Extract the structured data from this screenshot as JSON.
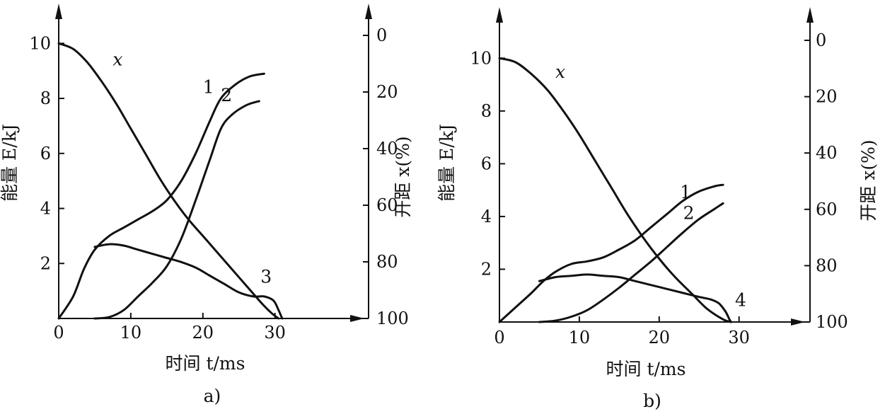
{
  "chart_data": [
    {
      "id": "a",
      "type": "line",
      "caption": "a)",
      "xlabel": "时间 t/ms",
      "ylabel": "能量 E/kJ",
      "y2label": "开距 x(%)",
      "xlim": [
        0,
        37
      ],
      "ylim": [
        0,
        10.6
      ],
      "y2lim": [
        0,
        100
      ],
      "y2_inverted": true,
      "x_ticks": [
        0,
        10,
        20,
        30
      ],
      "y_ticks": [
        2,
        4,
        6,
        8,
        10
      ],
      "y2_ticks": [
        0,
        20,
        40,
        60,
        80,
        100
      ],
      "series": [
        {
          "name": "x",
          "label_at": [
            7.5,
            9.2
          ],
          "points": [
            [
              0,
              10
            ],
            [
              2,
              9.8
            ],
            [
              4,
              9.3
            ],
            [
              6,
              8.6
            ],
            [
              8,
              7.8
            ],
            [
              10,
              6.9
            ],
            [
              12,
              6
            ],
            [
              14,
              5.1
            ],
            [
              16,
              4.3
            ],
            [
              18,
              3.6
            ],
            [
              20,
              3
            ],
            [
              22,
              2.4
            ],
            [
              24,
              1.8
            ],
            [
              26,
              1.2
            ],
            [
              28,
              0.6
            ],
            [
              29.5,
              0.2
            ],
            [
              30.5,
              0
            ]
          ]
        },
        {
          "name": "1",
          "label_at": [
            20,
            8.2
          ],
          "points": [
            [
              0,
              0
            ],
            [
              2,
              0.8
            ],
            [
              3.5,
              1.8
            ],
            [
              5,
              2.5
            ],
            [
              7,
              3
            ],
            [
              9,
              3.3
            ],
            [
              11,
              3.6
            ],
            [
              13,
              3.9
            ],
            [
              15,
              4.3
            ],
            [
              17,
              5
            ],
            [
              19,
              6
            ],
            [
              21,
              7.2
            ],
            [
              22.5,
              8
            ],
            [
              24.5,
              8.5
            ],
            [
              26.5,
              8.8
            ],
            [
              28.5,
              8.9
            ]
          ]
        },
        {
          "name": "2",
          "label_at": [
            22.5,
            7.9
          ],
          "points": [
            [
              5,
              0
            ],
            [
              7,
              0.05
            ],
            [
              9,
              0.3
            ],
            [
              11,
              0.8
            ],
            [
              13,
              1.3
            ],
            [
              15,
              1.9
            ],
            [
              17,
              2.9
            ],
            [
              19,
              4.3
            ],
            [
              21,
              5.8
            ],
            [
              22.5,
              6.9
            ],
            [
              24,
              7.4
            ],
            [
              26,
              7.75
            ],
            [
              27.8,
              7.9
            ]
          ]
        },
        {
          "name": "3",
          "label_at": [
            28,
            1.3
          ],
          "points": [
            [
              5,
              2.6
            ],
            [
              7,
              2.7
            ],
            [
              9,
              2.65
            ],
            [
              11,
              2.5
            ],
            [
              13,
              2.35
            ],
            [
              15,
              2.2
            ],
            [
              17,
              2.05
            ],
            [
              19,
              1.85
            ],
            [
              21,
              1.55
            ],
            [
              23,
              1.25
            ],
            [
              25,
              0.95
            ],
            [
              27,
              0.8
            ],
            [
              28.5,
              0.8
            ],
            [
              29.8,
              0.65
            ],
            [
              30.5,
              0.3
            ],
            [
              31,
              0
            ]
          ]
        }
      ]
    },
    {
      "id": "b",
      "type": "line",
      "caption": "b)",
      "xlabel": "时间 t/ms",
      "ylabel": "能量 E/kJ",
      "y2label": "开距 x(%)",
      "xlim": [
        0,
        38
      ],
      "ylim": [
        0,
        11
      ],
      "y2lim": [
        0,
        100
      ],
      "y2_inverted": true,
      "x_ticks": [
        0,
        10,
        20,
        30
      ],
      "y_ticks": [
        2,
        4,
        6,
        8,
        10
      ],
      "y2_ticks": [
        0,
        20,
        40,
        60,
        80,
        100
      ],
      "series": [
        {
          "name": "x",
          "label_at": [
            7,
            9.25
          ],
          "points": [
            [
              0,
              10
            ],
            [
              2,
              9.85
            ],
            [
              4,
              9.4
            ],
            [
              6,
              8.8
            ],
            [
              8,
              8
            ],
            [
              10,
              7.1
            ],
            [
              12,
              6.1
            ],
            [
              14,
              5.1
            ],
            [
              16,
              4.1
            ],
            [
              18,
              3.2
            ],
            [
              20,
              2.4
            ],
            [
              22,
              1.7
            ],
            [
              24,
              1.1
            ],
            [
              26,
              0.5
            ],
            [
              28,
              0.1
            ],
            [
              29,
              0
            ]
          ]
        },
        {
          "name": "1",
          "label_at": [
            22.6,
            4.7
          ],
          "points": [
            [
              0,
              0
            ],
            [
              2,
              0.55
            ],
            [
              4,
              1.1
            ],
            [
              5.5,
              1.55
            ],
            [
              7,
              1.9
            ],
            [
              9,
              2.2
            ],
            [
              11,
              2.3
            ],
            [
              13,
              2.45
            ],
            [
              15,
              2.75
            ],
            [
              17,
              3.1
            ],
            [
              19,
              3.6
            ],
            [
              21,
              4.1
            ],
            [
              23,
              4.6
            ],
            [
              25,
              4.95
            ],
            [
              27,
              5.15
            ],
            [
              28,
              5.2
            ]
          ]
        },
        {
          "name": "2",
          "label_at": [
            23,
            3.9
          ],
          "points": [
            [
              5,
              0
            ],
            [
              7,
              0.05
            ],
            [
              9,
              0.2
            ],
            [
              11,
              0.45
            ],
            [
              13,
              0.85
            ],
            [
              15,
              1.3
            ],
            [
              17,
              1.8
            ],
            [
              19,
              2.3
            ],
            [
              21,
              2.85
            ],
            [
              23,
              3.4
            ],
            [
              25,
              3.9
            ],
            [
              27,
              4.3
            ],
            [
              28,
              4.5
            ]
          ]
        },
        {
          "name": "4",
          "label_at": [
            29.5,
            0.6
          ],
          "points": [
            [
              5,
              1.55
            ],
            [
              7,
              1.7
            ],
            [
              9,
              1.75
            ],
            [
              11,
              1.8
            ],
            [
              13,
              1.75
            ],
            [
              15,
              1.7
            ],
            [
              17,
              1.55
            ],
            [
              19,
              1.4
            ],
            [
              21,
              1.25
            ],
            [
              23,
              1.1
            ],
            [
              25,
              0.95
            ],
            [
              26.5,
              0.85
            ],
            [
              27.5,
              0.7
            ],
            [
              28.3,
              0.4
            ],
            [
              28.8,
              0.1
            ],
            [
              29,
              0
            ]
          ]
        }
      ]
    }
  ]
}
